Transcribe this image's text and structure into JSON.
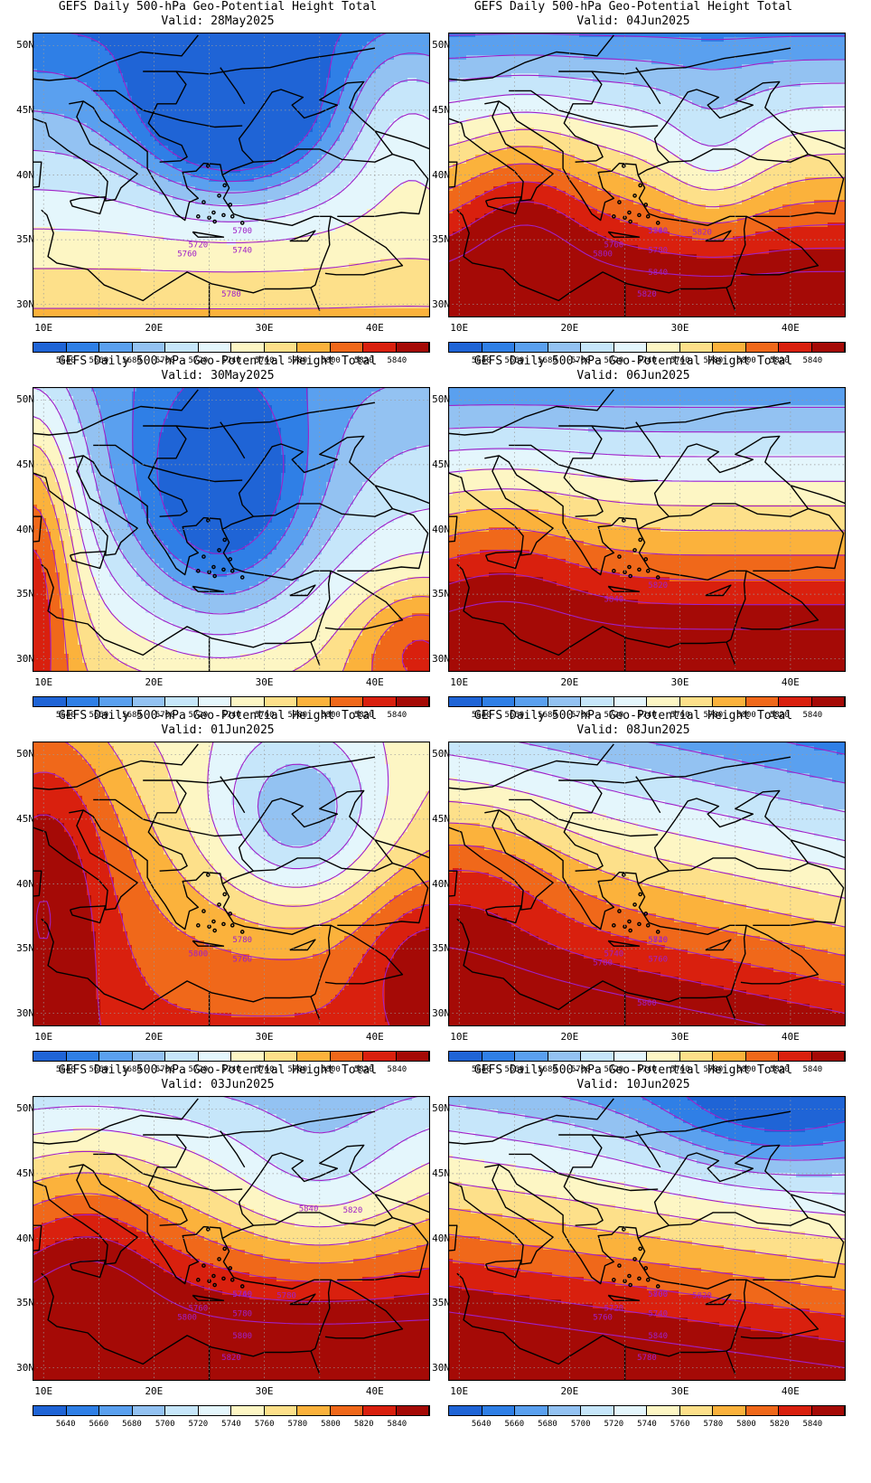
{
  "colors": {
    "levels": [
      {
        "value": "5640",
        "color": "#1f64d6"
      },
      {
        "value": "5660",
        "color": "#2f7fe6"
      },
      {
        "value": "5680",
        "color": "#5aa0ef"
      },
      {
        "value": "5700",
        "color": "#93c2f2"
      },
      {
        "value": "5720",
        "color": "#c6e6fa"
      },
      {
        "value": "5740",
        "color": "#e4f6fc"
      },
      {
        "value": "5760",
        "color": "#fdf6c4"
      },
      {
        "value": "5780",
        "color": "#fde08a"
      },
      {
        "value": "5800",
        "color": "#fbb23c"
      },
      {
        "value": "5820",
        "color": "#f0681a"
      },
      {
        "value": "5840",
        "color": "#d9200e"
      },
      {
        "value": ">5840",
        "color": "#a50a06"
      }
    ],
    "contour": "#a020c8",
    "coast": "#000000"
  },
  "lat_labels": [
    "50N",
    "45N",
    "40N",
    "35N",
    "30N"
  ],
  "lon_labels": [
    "10E",
    "20E",
    "30E",
    "40E"
  ],
  "colorbar_labels": [
    "5640",
    "5660",
    "5680",
    "5700",
    "5720",
    "5740",
    "5760",
    "5780",
    "5800",
    "5820",
    "5840"
  ],
  "panels": [
    {
      "title": "GEFS Daily 500-hPa Geo-Potential Height Total",
      "valid": "Valid: 28May2025",
      "pattern": "trough",
      "contour_labels": [
        "5700",
        "5720",
        "5740",
        "5760",
        "5780"
      ]
    },
    {
      "title": "GEFS Daily 500-hPa Geo-Potential Height Total",
      "valid": "Valid: 04Jun2025",
      "pattern": "ridge",
      "contour_labels": [
        "5740",
        "5760",
        "5780",
        "5800",
        "5820",
        "5800",
        "5820",
        "5840"
      ]
    },
    {
      "title": "GEFS Daily 500-hPa Geo-Potential Height Total",
      "valid": "Valid: 30May2025",
      "pattern": "deeptrough",
      "contour_labels": []
    },
    {
      "title": "GEFS Daily 500-hPa Geo-Potential Height Total",
      "valid": "Valid: 06Jun2025",
      "pattern": "ridgeflat",
      "contour_labels": [
        "5820",
        "5840"
      ]
    },
    {
      "title": "GEFS Daily 500-hPa Geo-Potential Height Total",
      "valid": "Valid: 01Jun2025",
      "pattern": "cutoff",
      "contour_labels": [
        "5780",
        "5800",
        "5760"
      ]
    },
    {
      "title": "GEFS Daily 500-hPa Geo-Potential Height Total",
      "valid": "Valid: 08Jun2025",
      "pattern": "zonal",
      "contour_labels": [
        "5720",
        "5740",
        "5760",
        "5780",
        "5800",
        "5840"
      ]
    },
    {
      "title": "GEFS Daily 500-hPa Geo-Potential Height Total",
      "valid": "Valid: 03Jun2025",
      "pattern": "ridgeeast",
      "contour_labels": [
        "5740",
        "5760",
        "5780",
        "5800",
        "5820",
        "5760",
        "5780",
        "5800",
        "5820",
        "5840"
      ]
    },
    {
      "title": "GEFS Daily 500-hPa Geo-Potential Height Total",
      "valid": "Valid: 10Jun2025",
      "pattern": "zonal2",
      "contour_labels": [
        "5700",
        "5720",
        "5740",
        "5760",
        "5780",
        "5800",
        "5820",
        "5840"
      ]
    }
  ]
}
